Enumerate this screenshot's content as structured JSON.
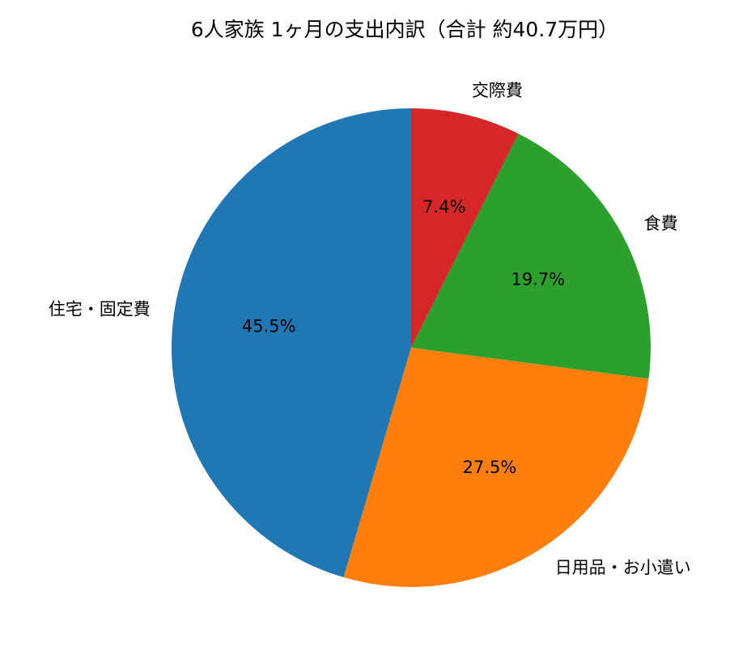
{
  "chart_data": {
    "type": "pie",
    "title": "6人家族 1ヶ月の支出内訳（合計 約40.7万円）",
    "categories": [
      "住宅・固定費",
      "日用品・お小遣い",
      "食費",
      "交際費"
    ],
    "values": [
      45.5,
      27.5,
      19.7,
      7.4
    ],
    "value_labels": [
      "45.5%",
      "27.5%",
      "19.7%",
      "7.4%"
    ],
    "colors": [
      "#1f77b4",
      "#ff7f0e",
      "#2ca02c",
      "#d62728"
    ],
    "start_angle": 90,
    "counterclock": true
  }
}
